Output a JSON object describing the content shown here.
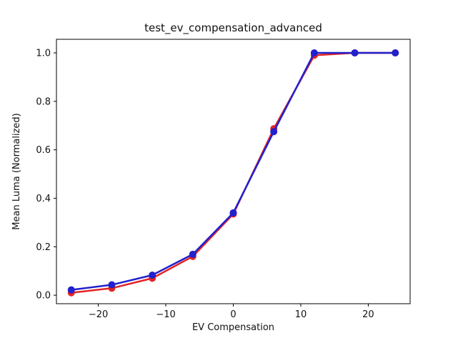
{
  "figure": {
    "background": "#ffffff",
    "spine_color": "#000000",
    "text_color": "#111111"
  },
  "chart_data": {
    "type": "line",
    "title": "test_ev_compensation_advanced",
    "xlabel": "EV Compensation",
    "ylabel": "Mean Luma (Normalized)",
    "x": [
      -24,
      -18,
      -12,
      -6,
      0,
      6,
      12,
      18,
      24
    ],
    "series": [
      {
        "name": "red-series",
        "color": "#e32424",
        "marker": "circle",
        "values": [
          0.01,
          0.029,
          0.07,
          0.16,
          0.335,
          0.687,
          0.99,
          1.0,
          1.0
        ]
      },
      {
        "name": "blue-series",
        "color": "#2121cd",
        "marker": "circle",
        "values": [
          0.022,
          0.043,
          0.083,
          0.169,
          0.34,
          0.675,
          1.0,
          1.0,
          1.0
        ]
      }
    ],
    "xlim": [
      -26.2,
      26.2
    ],
    "ylim": [
      -0.035,
      1.056
    ],
    "xticks": [
      -20,
      -10,
      0,
      10,
      20
    ],
    "xtick_labels": [
      "−20",
      "−10",
      "0",
      "10",
      "20"
    ],
    "yticks": [
      0.0,
      0.2,
      0.4,
      0.6,
      0.8,
      1.0
    ],
    "ytick_labels": [
      "0.0",
      "0.2",
      "0.4",
      "0.6",
      "0.8",
      "1.0"
    ],
    "grid": false,
    "legend": null
  }
}
